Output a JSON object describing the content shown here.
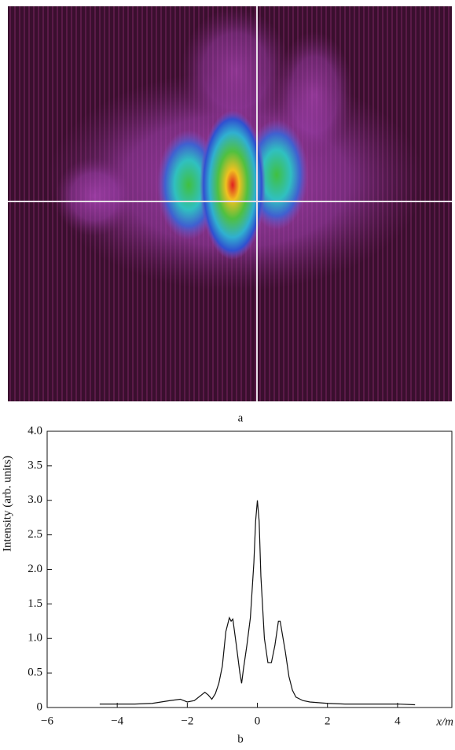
{
  "figure": {
    "panel_a_label": "a",
    "panel_b_label": "b"
  },
  "chart_data": {
    "type": "line",
    "ylabel": "Intensity (arb. units)",
    "xlabel": "x/m",
    "x": [
      -4.5,
      -4.0,
      -3.5,
      -3.0,
      -2.5,
      -2.2,
      -2.0,
      -1.8,
      -1.6,
      -1.5,
      -1.4,
      -1.3,
      -1.2,
      -1.1,
      -1.0,
      -0.9,
      -0.8,
      -0.75,
      -0.7,
      -0.6,
      -0.5,
      -0.45,
      -0.4,
      -0.3,
      -0.2,
      -0.1,
      -0.05,
      0,
      0.05,
      0.1,
      0.2,
      0.3,
      0.4,
      0.5,
      0.6,
      0.65,
      0.7,
      0.8,
      0.9,
      1.0,
      1.1,
      1.3,
      1.5,
      2.0,
      2.5,
      3.0,
      3.5,
      4.0,
      4.5
    ],
    "series": [
      {
        "color": "#111111",
        "values": [
          0.05,
          0.05,
          0.05,
          0.06,
          0.1,
          0.12,
          0.08,
          0.1,
          0.18,
          0.22,
          0.18,
          0.12,
          0.2,
          0.35,
          0.6,
          1.1,
          1.3,
          1.25,
          1.28,
          0.9,
          0.5,
          0.35,
          0.55,
          0.9,
          1.3,
          2.1,
          2.7,
          3.0,
          2.7,
          1.9,
          1.0,
          0.65,
          0.65,
          0.9,
          1.25,
          1.25,
          1.1,
          0.8,
          0.45,
          0.25,
          0.15,
          0.1,
          0.08,
          0.06,
          0.05,
          0.05,
          0.05,
          0.05,
          0.04
        ]
      }
    ],
    "xlim": [
      -6,
      5.55
    ],
    "xticks": [
      {
        "value": -6,
        "label": "−6"
      },
      {
        "value": -4,
        "label": "−4"
      },
      {
        "value": -2,
        "label": "−2"
      },
      0,
      2,
      4
    ],
    "ylim": [
      0,
      4
    ],
    "yticks": [
      0,
      0.5,
      {
        "value": 1,
        "label": "1.0"
      },
      1.5,
      {
        "value": 2,
        "label": "2.0"
      },
      2.5,
      {
        "value": 3,
        "label": "3.0"
      },
      3.5,
      {
        "value": 4,
        "label": "4.0"
      }
    ],
    "grid": false
  }
}
